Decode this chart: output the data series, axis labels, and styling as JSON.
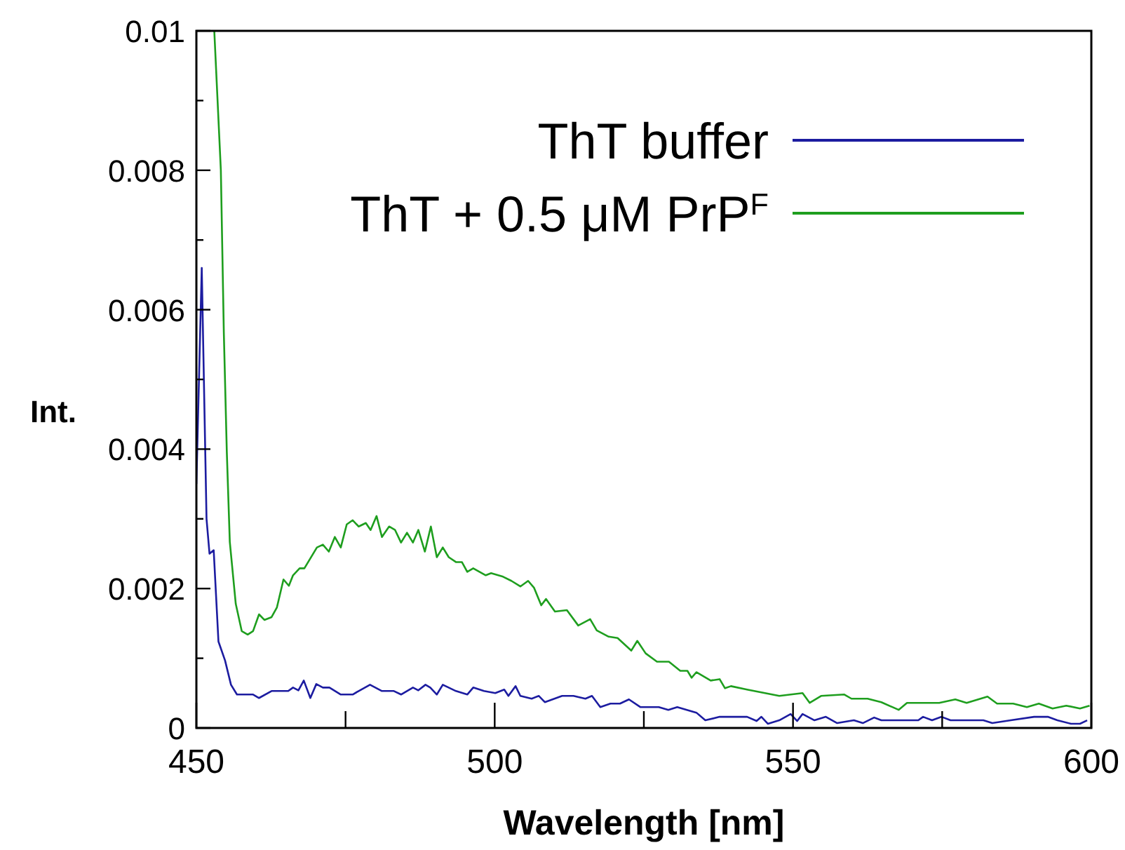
{
  "chart_data": {
    "type": "line",
    "xlabel": "Wavelength [nm]",
    "ylabel": "Int.",
    "xlim": [
      450,
      600
    ],
    "ylim": [
      0,
      0.01
    ],
    "xticks": [
      450,
      {
        "value": 475,
        "label": null
      },
      500,
      {
        "value": 525,
        "label": null
      },
      550,
      {
        "value": 575,
        "label": null
      },
      600
    ],
    "yticks": [
      0,
      {
        "value": 0.001,
        "label": null
      },
      0.002,
      {
        "value": 0.003,
        "label": null
      },
      0.004,
      {
        "value": 0.005,
        "label": null
      },
      0.006,
      {
        "value": 0.007,
        "label": null
      },
      0.008,
      {
        "value": 0.009,
        "label": null
      },
      0.01
    ],
    "grid": false,
    "legend": "top right",
    "marker": "none",
    "line_style": "solid",
    "series": [
      {
        "name": "ThT buffer",
        "color": "#1c1ca0",
        "x": [
          450,
          450.9,
          451.7,
          452.2,
          452.9,
          453.7,
          454.8,
          455.8,
          456.8,
          459.5,
          460.5,
          462.6,
          465.4,
          466.2,
          467.1,
          468,
          469.1,
          470.1,
          471.2,
          472.3,
          474.2,
          476.2,
          477.2,
          479.1,
          481.1,
          483.1,
          484.3,
          486.3,
          487.2,
          488.4,
          489.2,
          490.3,
          491.3,
          493.5,
          495.4,
          496.4,
          498.2,
          500.1,
          501.6,
          502.3,
          503.5,
          504.3,
          506.2,
          507.4,
          508.4,
          511.3,
          513.2,
          515.2,
          516.3,
          517.7,
          519.4,
          521,
          522.5,
          524.4,
          527.5,
          529.1,
          530.6,
          533.8,
          535.3,
          537.7,
          542.3,
          543.9,
          544.7,
          545.8,
          547.7,
          549.6,
          550.7,
          551.6,
          553.6,
          555.5,
          557.4,
          560.2,
          561.7,
          563.6,
          564.8,
          571,
          571.8,
          573.3,
          574.9,
          576.4,
          581.9,
          583.4,
          586.5,
          590.4,
          592.7,
          594.3,
          596.6,
          598.1,
          599.3
        ],
        "values": [
          0.0035,
          0.0066,
          0.003,
          0.0025,
          0.00255,
          0.00124,
          0.00097,
          0.00062,
          0.00048,
          0.00048,
          0.00043,
          0.00053,
          0.00053,
          0.00058,
          0.00054,
          0.00068,
          0.00043,
          0.00063,
          0.00058,
          0.00058,
          0.00048,
          0.00048,
          0.00053,
          0.00062,
          0.00053,
          0.00053,
          0.00048,
          0.00058,
          0.00054,
          0.00062,
          0.00058,
          0.00048,
          0.00062,
          0.00053,
          0.00048,
          0.00058,
          0.00053,
          0.0005,
          0.00055,
          0.00046,
          0.0006,
          0.00046,
          0.00042,
          0.00046,
          0.00037,
          0.00046,
          0.00046,
          0.00042,
          0.00046,
          0.0003,
          0.00035,
          0.00035,
          0.00041,
          0.0003,
          0.0003,
          0.00026,
          0.0003,
          0.00022,
          0.00011,
          0.00016,
          0.00016,
          0.0001,
          0.00016,
          6e-05,
          0.00011,
          0.0002,
          0.0001,
          0.0002,
          0.00011,
          0.00016,
          7e-05,
          0.00011,
          7e-05,
          0.00015,
          0.00011,
          0.00011,
          0.00016,
          0.00011,
          0.00016,
          0.00011,
          0.00011,
          7e-05,
          0.00011,
          0.00016,
          0.00016,
          0.00011,
          6e-05,
          6e-05,
          0.00011
        ]
      },
      {
        "name": "ThT + 0.5 μM PrP$^{F}$",
        "color": "#1e9e1e",
        "x": [
          453,
          454.1,
          454.6,
          455.1,
          455.6,
          456.6,
          457.6,
          458.6,
          459.5,
          460.5,
          461.4,
          462.6,
          463.5,
          464.6,
          465.5,
          466.2,
          467.3,
          468.1,
          470.2,
          471.2,
          472.2,
          473.2,
          474.2,
          475.2,
          476.2,
          477.2,
          478.4,
          479.2,
          480.2,
          481.1,
          482.3,
          483.3,
          484.3,
          485.3,
          486.3,
          487.2,
          488.3,
          489.3,
          490.3,
          491.3,
          492.3,
          493.5,
          494.5,
          495.4,
          496.4,
          498.5,
          499.4,
          501.4,
          502.8,
          504.3,
          505.6,
          506.6,
          507.8,
          508.6,
          510.1,
          512.1,
          514,
          516,
          517.1,
          519.1,
          520.6,
          522.9,
          523.9,
          525.3,
          527.2,
          529.2,
          531.1,
          532.3,
          533,
          533.8,
          536.2,
          537.7,
          538.6,
          539.6,
          542.3,
          547.7,
          551.6,
          552.8,
          554.7,
          558.6,
          559.8,
          562.5,
          564.8,
          567.7,
          569.1,
          574.5,
          577.2,
          579.1,
          582.6,
          584.2,
          586.9,
          589.2,
          591.2,
          593.5,
          595.8,
          598.1,
          599.7
        ],
        "values": [
          0.01,
          0.008,
          0.00567,
          0.00396,
          0.00267,
          0.00178,
          0.00139,
          0.00134,
          0.00139,
          0.00163,
          0.00155,
          0.00159,
          0.00173,
          0.00213,
          0.00204,
          0.00219,
          0.00229,
          0.00229,
          0.00259,
          0.00263,
          0.00253,
          0.00274,
          0.00259,
          0.00292,
          0.00298,
          0.00289,
          0.00294,
          0.00284,
          0.00304,
          0.00274,
          0.00289,
          0.00284,
          0.00266,
          0.0028,
          0.00266,
          0.00284,
          0.00253,
          0.00289,
          0.00245,
          0.00259,
          0.00245,
          0.00238,
          0.00238,
          0.00224,
          0.00229,
          0.00219,
          0.00222,
          0.00217,
          0.00211,
          0.00203,
          0.00211,
          0.00201,
          0.00176,
          0.00185,
          0.00167,
          0.00169,
          0.00147,
          0.00156,
          0.0014,
          0.00131,
          0.00129,
          0.00111,
          0.00125,
          0.00107,
          0.00095,
          0.00095,
          0.00082,
          0.00082,
          0.00072,
          0.0008,
          0.00068,
          0.0007,
          0.00057,
          0.0006,
          0.00055,
          0.00046,
          0.0005,
          0.00036,
          0.00046,
          0.00048,
          0.00042,
          0.00042,
          0.00037,
          0.00026,
          0.00036,
          0.00036,
          0.00041,
          0.00036,
          0.00045,
          0.00035,
          0.00035,
          0.0003,
          0.00035,
          0.00028,
          0.00032,
          0.00028,
          0.00032
        ]
      }
    ]
  }
}
